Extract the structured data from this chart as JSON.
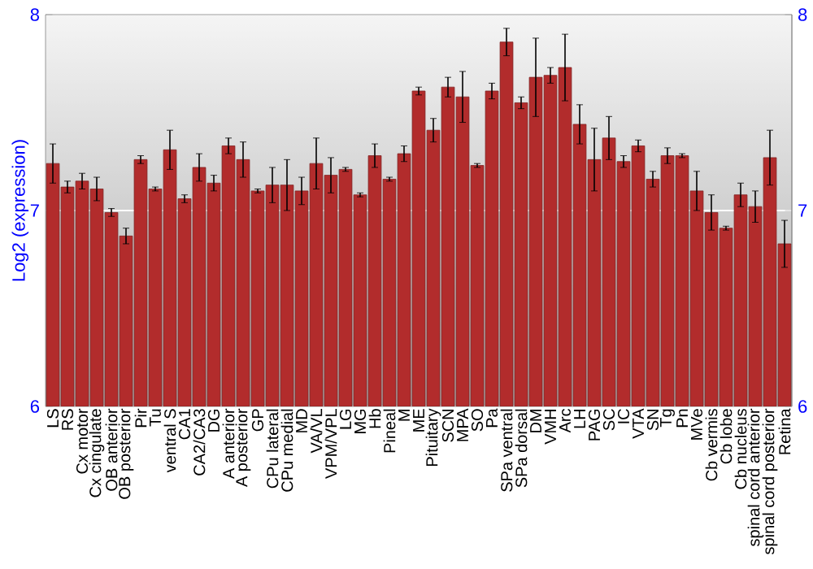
{
  "chart_data": {
    "type": "bar",
    "ylabel": "Log2 (expression)",
    "categories": [
      "LS",
      "RS",
      "Cx motor",
      "Cx cingulate",
      "OB anterior",
      "OB posterior",
      "Pir",
      "Tu",
      "ventral S",
      "CA1",
      "CA2/CA3",
      "DG",
      "A anterior",
      "A posterior",
      "GP",
      "CPu lateral",
      "CPu medial",
      "MD",
      "VA/VL",
      "VPM/VPL",
      "LG",
      "MG",
      "Hb",
      "Pineal",
      "M",
      "ME",
      "Pituitary",
      "SCN",
      "MPA",
      "SO",
      "Pa",
      "SPa ventral",
      "SPa dorsal",
      "DM",
      "VMH",
      "Arc",
      "LH",
      "PAG",
      "SC",
      "IC",
      "VTA",
      "SN",
      "Tg",
      "Pn",
      "MVe",
      "Cb vermis",
      "Cb lobe",
      "Cb nucleus",
      "spinal cord anterior",
      "spinal cord posterior",
      "Retina"
    ],
    "values": [
      7.24,
      7.12,
      7.15,
      7.11,
      6.99,
      6.87,
      7.26,
      7.11,
      7.31,
      7.06,
      7.22,
      7.14,
      7.33,
      7.26,
      7.1,
      7.13,
      7.13,
      7.1,
      7.24,
      7.18,
      7.21,
      7.08,
      7.28,
      7.16,
      7.29,
      7.61,
      7.41,
      7.63,
      7.58,
      7.23,
      7.61,
      7.86,
      7.55,
      7.68,
      7.69,
      7.73,
      7.44,
      7.26,
      7.37,
      7.25,
      7.33,
      7.16,
      7.28,
      7.28,
      7.1,
      6.99,
      6.91,
      7.08,
      7.02,
      7.27,
      6.83
    ],
    "errors": [
      0.1,
      0.03,
      0.04,
      0.06,
      0.02,
      0.04,
      0.02,
      0.01,
      0.1,
      0.02,
      0.07,
      0.04,
      0.04,
      0.09,
      0.01,
      0.09,
      0.13,
      0.07,
      0.13,
      0.09,
      0.01,
      0.01,
      0.06,
      0.01,
      0.04,
      0.02,
      0.06,
      0.05,
      0.13,
      0.01,
      0.04,
      0.07,
      0.03,
      0.2,
      0.04,
      0.17,
      0.1,
      0.16,
      0.11,
      0.03,
      0.03,
      0.04,
      0.04,
      0.01,
      0.1,
      0.09,
      0.01,
      0.06,
      0.08,
      0.14,
      0.12
    ],
    "color": "#b22c2c",
    "ylim": [
      6,
      8
    ],
    "yticks": [
      6,
      7,
      8
    ],
    "y2lim": [
      6,
      8
    ],
    "y2ticks": [
      6,
      7,
      8
    ],
    "grid": "y"
  }
}
